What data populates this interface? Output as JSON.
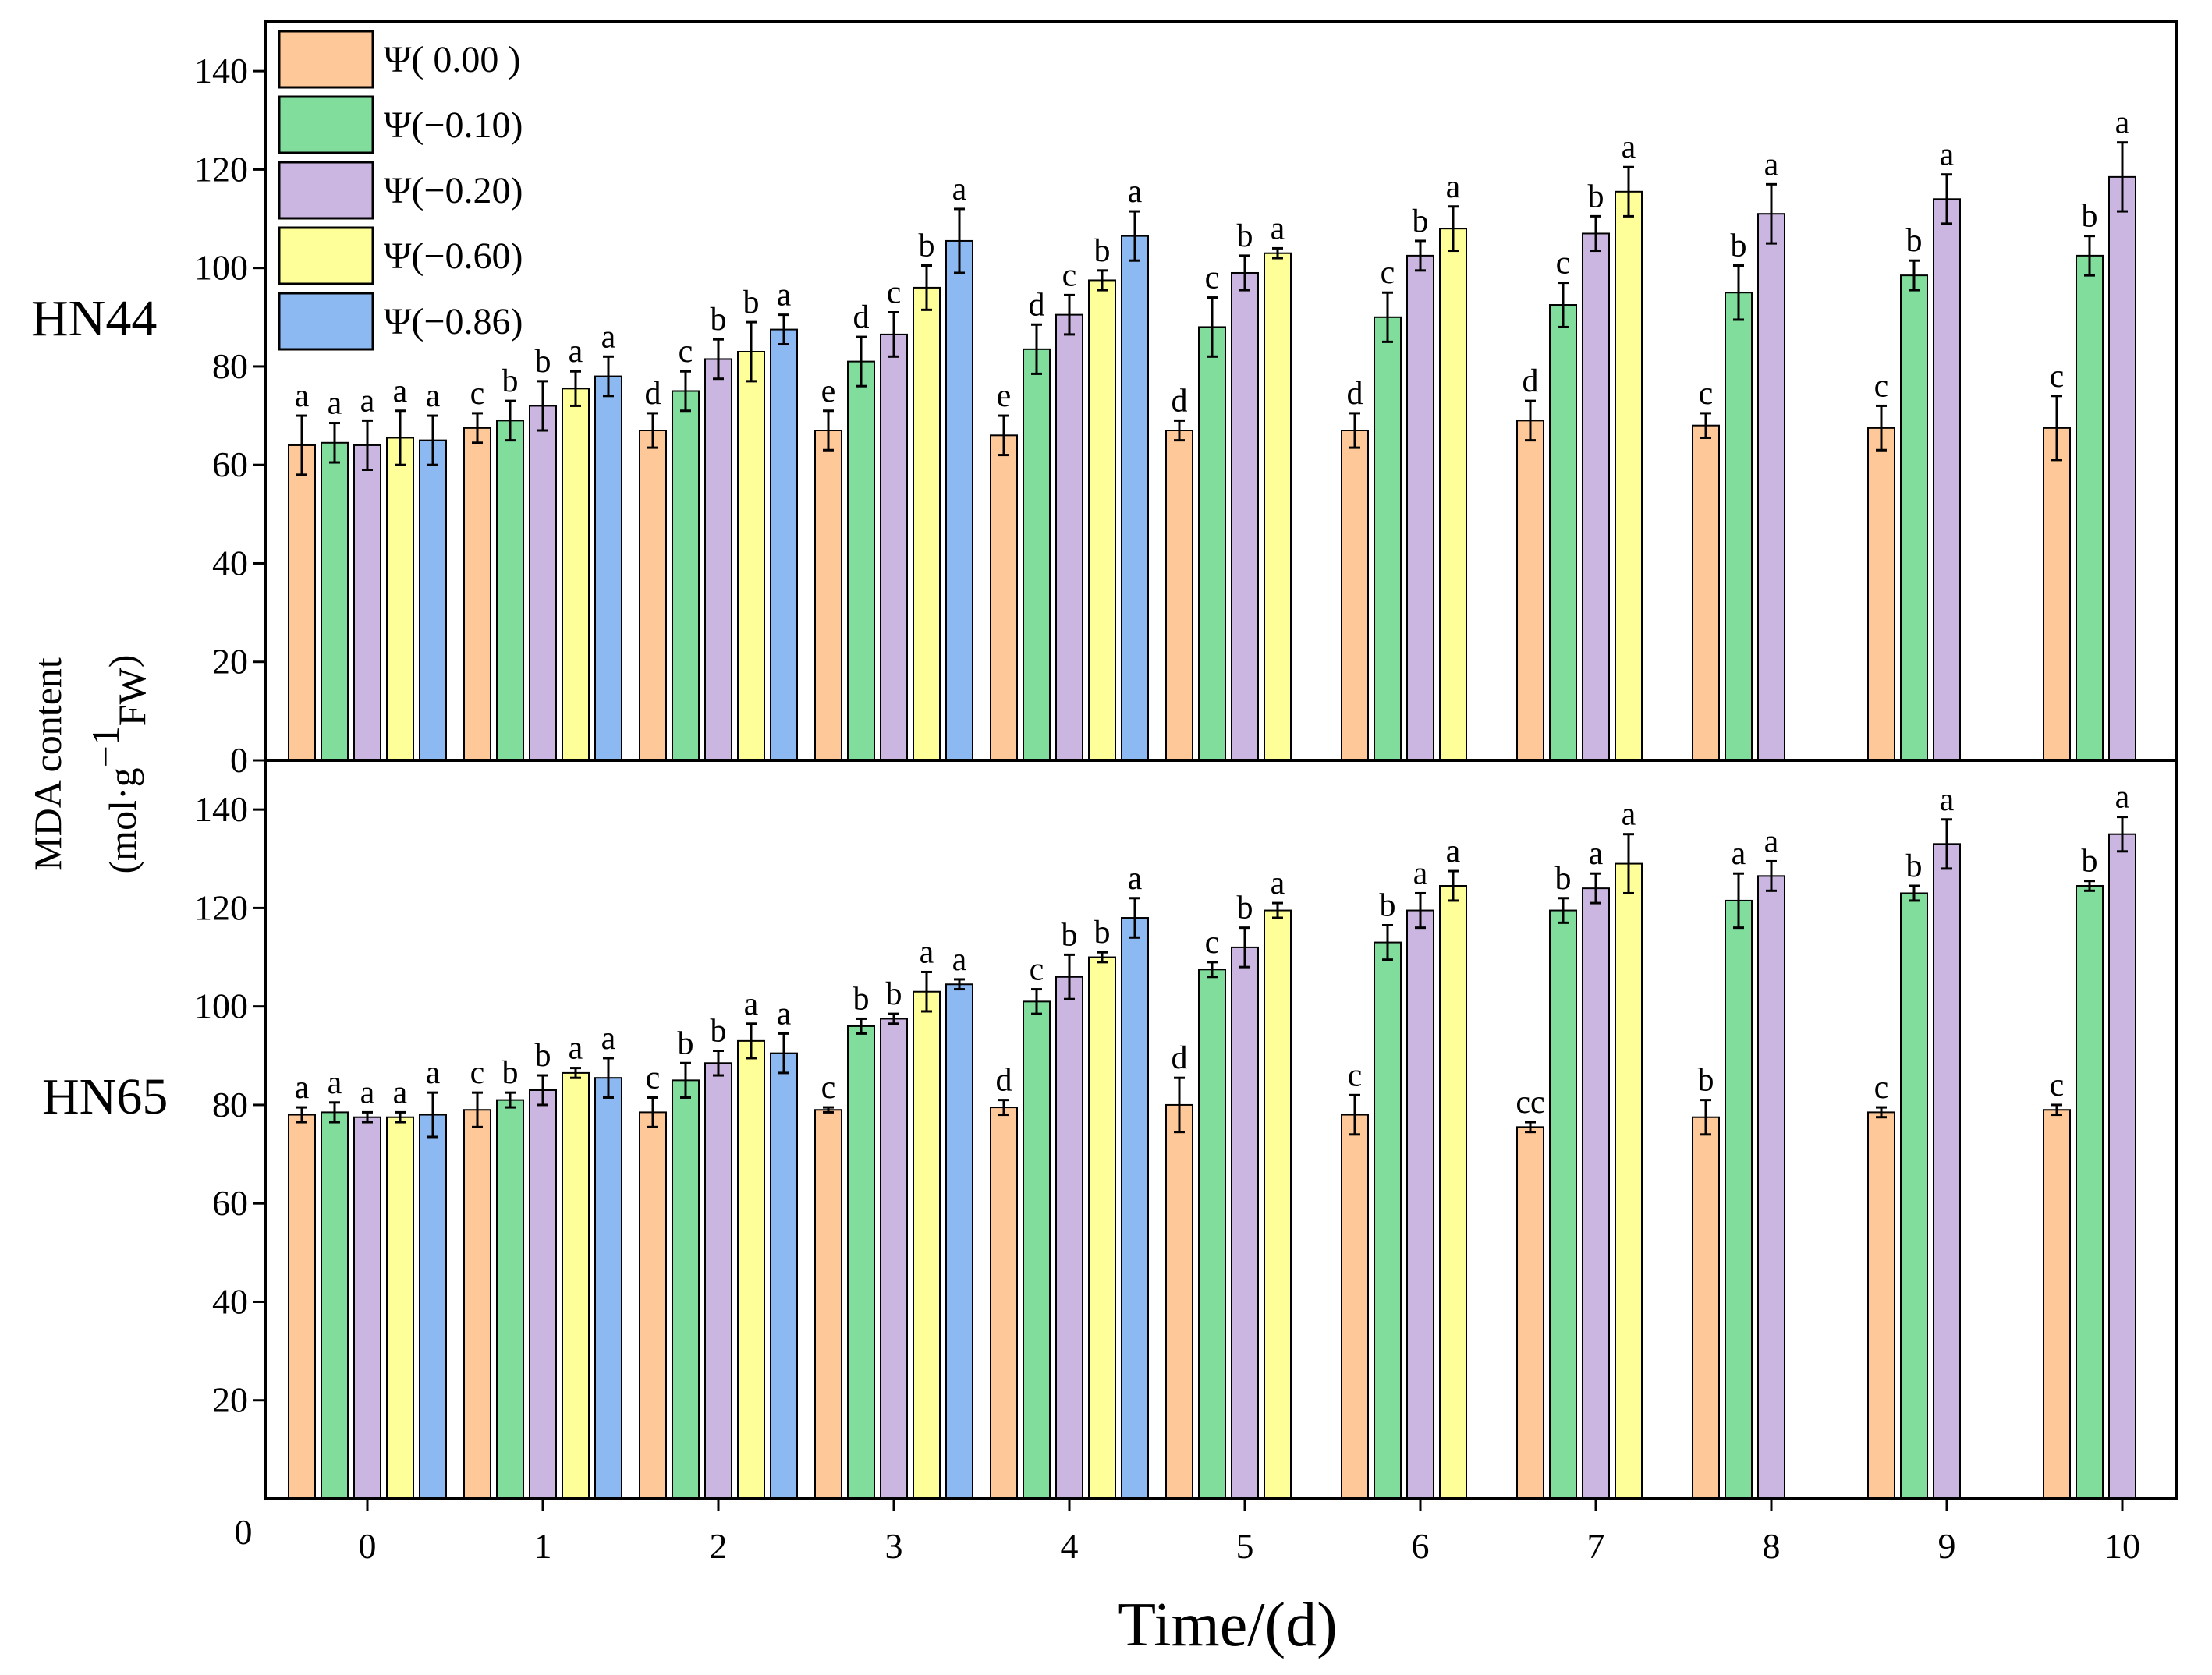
{
  "chart_data": {
    "type": "bar",
    "xlabel": "Time/(d)",
    "ylabel_line1": "MDA content",
    "ylabel_line2_prefix": "(mol·g",
    "ylabel_line2_sup": "−1",
    "ylabel_line2_sub": "FW",
    "ylabel_line2_suffix": ")",
    "categories": [
      "0",
      "1",
      "2",
      "3",
      "4",
      "5",
      "6",
      "7",
      "8",
      "9",
      "10"
    ],
    "bottom_axis_zero": "0",
    "legend": [
      {
        "label": "Ψ( 0.00 )",
        "color": "#FFC898"
      },
      {
        "label": "Ψ(−0.10)",
        "color": "#80DD9C"
      },
      {
        "label": "Ψ(−0.20)",
        "color": "#CBB6E1"
      },
      {
        "label": "Ψ(−0.60)",
        "color": "#FFFF9A"
      },
      {
        "label": "Ψ(−0.86)",
        "color": "#8DB9F2"
      }
    ],
    "panels": [
      {
        "label": "HN44",
        "ylim": [
          0,
          150
        ],
        "yticks": [
          0,
          20,
          40,
          60,
          80,
          100,
          120,
          140
        ],
        "series": [
          {
            "name": "Ψ( 0.00 )",
            "values": [
              64,
              67.5,
              67,
              67,
              66,
              67,
              67,
              69,
              68,
              67.5,
              67.5
            ],
            "errors": [
              6,
              3,
              3.5,
              4,
              4,
              2,
              3.5,
              4,
              2.5,
              4.5,
              6.5
            ],
            "sig": [
              "a",
              "c",
              "d",
              "e",
              "e",
              "d",
              "d",
              "d",
              "c",
              "c",
              "c"
            ]
          },
          {
            "name": "Ψ(−0.10)",
            "values": [
              64.5,
              69,
              75,
              81,
              83.5,
              88,
              90,
              92.5,
              95,
              98.5,
              102.5
            ],
            "errors": [
              4,
              4,
              4,
              5,
              5,
              6,
              5,
              4.5,
              5.5,
              3,
              4
            ],
            "sig": [
              "a",
              "b",
              "c",
              "d",
              "d",
              "c",
              "c",
              "c",
              "b",
              "b",
              "b"
            ]
          },
          {
            "name": "Ψ(−0.20)",
            "values": [
              64,
              72,
              81.5,
              86.5,
              90.5,
              99,
              102.5,
              107,
              111,
              114,
              118.5
            ],
            "errors": [
              5,
              5,
              4,
              4.5,
              4,
              3.5,
              3,
              3.5,
              6,
              5,
              7
            ],
            "sig": [
              "a",
              "b",
              "b",
              "c",
              "c",
              "b",
              "b",
              "b",
              "a",
              "a",
              "a"
            ]
          },
          {
            "name": "Ψ(−0.60)",
            "values": [
              65.5,
              75.5,
              83,
              96,
              97.5,
              103,
              108,
              115.5,
              null,
              null,
              null
            ],
            "errors": [
              5.5,
              3.5,
              6,
              4.5,
              2,
              1,
              4.5,
              5,
              null,
              null,
              null
            ],
            "sig": [
              "a",
              "a",
              "b",
              "b",
              "b",
              "a",
              "a",
              "a",
              null,
              null,
              null
            ]
          },
          {
            "name": "Ψ(−0.86)",
            "values": [
              65,
              78,
              87.5,
              105.5,
              106.5,
              null,
              null,
              null,
              null,
              null,
              null
            ],
            "errors": [
              5,
              4,
              3,
              6.5,
              5,
              null,
              null,
              null,
              null,
              null,
              null
            ],
            "sig": [
              "a",
              "a",
              "a",
              "a",
              "a",
              null,
              null,
              null,
              null,
              null,
              null
            ]
          }
        ]
      },
      {
        "label": "HN65",
        "ylim": [
          0,
          150
        ],
        "yticks": [
          20,
          40,
          60,
          80,
          100,
          120,
          140
        ],
        "series": [
          {
            "name": "Ψ( 0.00 )",
            "values": [
              78,
              79,
              78.5,
              79,
              79.5,
              80,
              78,
              75.5,
              77.5,
              78.5,
              79
            ],
            "errors": [
              1.5,
              3.5,
              3,
              0.5,
              1.5,
              5.5,
              4,
              1,
              3.5,
              1,
              1
            ],
            "sig": [
              "a",
              "c",
              "c",
              "c",
              "d",
              "d",
              "c",
              "cc",
              "b",
              "c",
              "c"
            ]
          },
          {
            "name": "Ψ(−0.10)",
            "values": [
              78.5,
              81,
              85,
              96,
              101,
              107.5,
              113,
              119.5,
              121.5,
              123,
              124.5
            ],
            "errors": [
              2,
              1.5,
              3.5,
              1.5,
              2.5,
              1.5,
              3.5,
              2.5,
              5.5,
              1.5,
              1
            ],
            "sig": [
              "a",
              "b",
              "b",
              "b",
              "c",
              "c",
              "b",
              "b",
              "a",
              "b",
              "b"
            ]
          },
          {
            "name": "Ψ(−0.20)",
            "values": [
              77.5,
              83,
              88.5,
              97.5,
              106,
              112,
              119.5,
              124,
              126.5,
              133,
              135
            ],
            "errors": [
              1,
              3,
              2.5,
              1,
              4.5,
              4,
              3.5,
              3,
              3,
              5,
              3.5
            ],
            "sig": [
              "a",
              "b",
              "b",
              "b",
              "b",
              "b",
              "a",
              "a",
              "a",
              "a",
              "a"
            ]
          },
          {
            "name": "Ψ(−0.60)",
            "values": [
              77.5,
              86.5,
              93,
              103,
              110,
              119.5,
              124.5,
              129,
              null,
              null,
              null
            ],
            "errors": [
              1,
              1,
              3.5,
              4,
              1,
              1.5,
              3,
              6,
              null,
              null,
              null
            ],
            "sig": [
              "a",
              "a",
              "a",
              "a",
              "b",
              "a",
              "a",
              "a",
              null,
              null,
              null
            ]
          },
          {
            "name": "Ψ(−0.86)",
            "values": [
              78,
              85.5,
              90.5,
              104.5,
              118,
              null,
              null,
              null,
              null,
              null,
              null
            ],
            "errors": [
              4.5,
              4,
              4,
              1,
              4,
              null,
              null,
              null,
              null,
              null,
              null
            ],
            "sig": [
              "a",
              "a",
              "a",
              "a",
              "a",
              null,
              null,
              null,
              null,
              null,
              null
            ]
          }
        ]
      }
    ]
  }
}
